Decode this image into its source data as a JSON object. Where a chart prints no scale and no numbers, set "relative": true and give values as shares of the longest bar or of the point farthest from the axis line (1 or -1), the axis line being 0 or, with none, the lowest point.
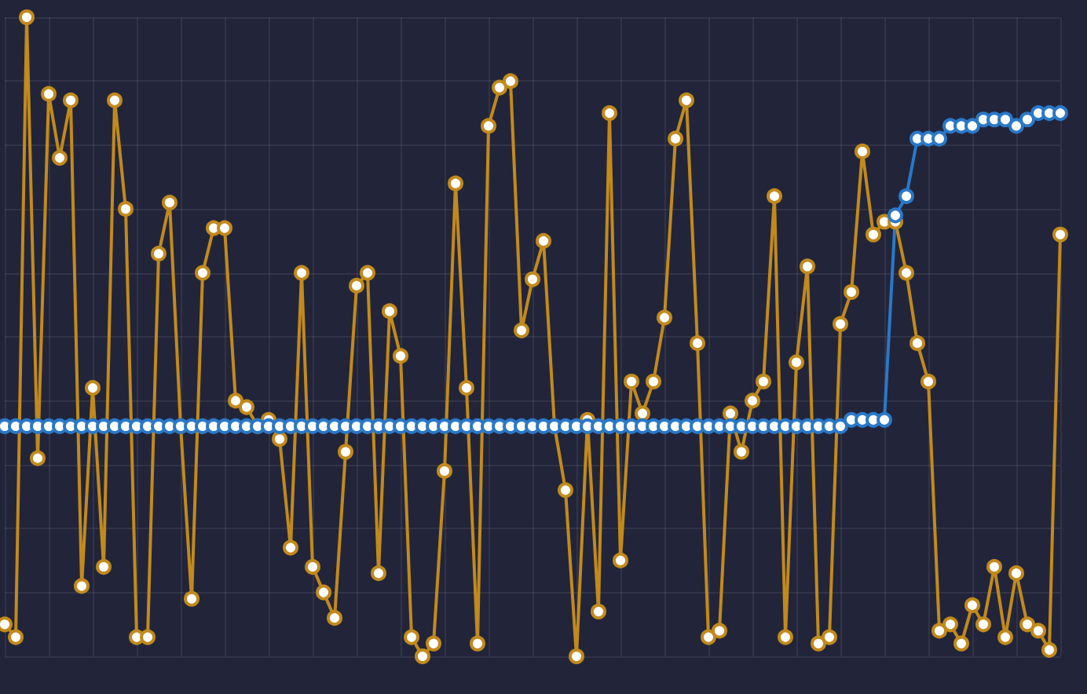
{
  "chart_data": {
    "type": "line",
    "relative": true,
    "grid": true,
    "marker": "circle",
    "categories": [
      null,
      null,
      null,
      null,
      null,
      null,
      null,
      null,
      null,
      null,
      null,
      null,
      null,
      null,
      null,
      null,
      null,
      null,
      null,
      null,
      null,
      null,
      null,
      null,
      null,
      null,
      null,
      null,
      null,
      null,
      null,
      null,
      null,
      null,
      null,
      null,
      null,
      null,
      null,
      null,
      null,
      null,
      null,
      null,
      null,
      null,
      null,
      null,
      null,
      null,
      null,
      null,
      null,
      null,
      null,
      null,
      null,
      null,
      null,
      null,
      null,
      null,
      null,
      null,
      null,
      null,
      null,
      null,
      null,
      null,
      null,
      null,
      null,
      null,
      null,
      null,
      null,
      null,
      null,
      null,
      null,
      null,
      null,
      null,
      null,
      null,
      null,
      null,
      null,
      null,
      null,
      null,
      null,
      null,
      null,
      null,
      null
    ],
    "series": [
      {
        "color": "#c28a1c",
        "values": [
          0.05,
          0.03,
          1.0,
          0.31,
          0.88,
          0.78,
          0.87,
          0.11,
          0.42,
          0.14,
          0.87,
          0.7,
          0.03,
          0.03,
          0.63,
          0.71,
          0.36,
          0.09,
          0.6,
          0.67,
          0.67,
          0.4,
          0.39,
          0.36,
          0.37,
          0.34,
          0.17,
          0.6,
          0.14,
          0.1,
          0.06,
          0.32,
          0.58,
          0.6,
          0.13,
          0.54,
          0.47,
          0.03,
          0,
          0.02,
          0.29,
          0.74,
          0.42,
          0.02,
          0.83,
          0.89,
          0.9,
          0.51,
          0.59,
          0.65,
          0.36,
          0.26,
          0.0,
          0.37,
          0.07,
          0.85,
          0.15,
          0.43,
          0.38,
          0.43,
          0.53,
          0.81,
          0.87,
          0.49,
          0.03,
          0.04,
          0.38,
          0.32,
          0.4,
          0.43,
          0.72,
          0.03,
          0.46,
          0.61,
          0.02,
          0.03,
          0.52,
          0.57,
          0.79,
          0.66,
          0.68,
          0.68,
          0.6,
          0.49,
          0.43,
          0.04,
          0.05,
          0.02,
          0.08,
          0.05,
          0.14,
          0.03,
          0.13,
          0.05,
          0.04,
          0.01,
          0.66
        ]
      },
      {
        "color": "#2a78c8",
        "values": [
          0.36,
          0.36,
          0.36,
          0.36,
          0.36,
          0.36,
          0.36,
          0.36,
          0.36,
          0.36,
          0.36,
          0.36,
          0.36,
          0.36,
          0.36,
          0.36,
          0.36,
          0.36,
          0.36,
          0.36,
          0.36,
          0.36,
          0.36,
          0.36,
          0.36,
          0.36,
          0.36,
          0.36,
          0.36,
          0.36,
          0.36,
          0.36,
          0.36,
          0.36,
          0.36,
          0.36,
          0.36,
          0.36,
          0.36,
          0.36,
          0.36,
          0.36,
          0.36,
          0.36,
          0.36,
          0.36,
          0.36,
          0.36,
          0.36,
          0.36,
          0.36,
          0.36,
          0.36,
          0.36,
          0.36,
          0.36,
          0.36,
          0.36,
          0.36,
          0.36,
          0.36,
          0.36,
          0.36,
          0.36,
          0.36,
          0.36,
          0.36,
          0.36,
          0.36,
          0.36,
          0.36,
          0.36,
          0.36,
          0.36,
          0.36,
          0.36,
          0.36,
          0.37,
          0.37,
          0.37,
          0.37,
          0.69,
          0.72,
          0.81,
          0.81,
          0.81,
          0.83,
          0.83,
          0.83,
          0.84,
          0.84,
          0.84,
          0.83,
          0.84,
          0.85,
          0.85,
          0.85
        ]
      }
    ]
  }
}
